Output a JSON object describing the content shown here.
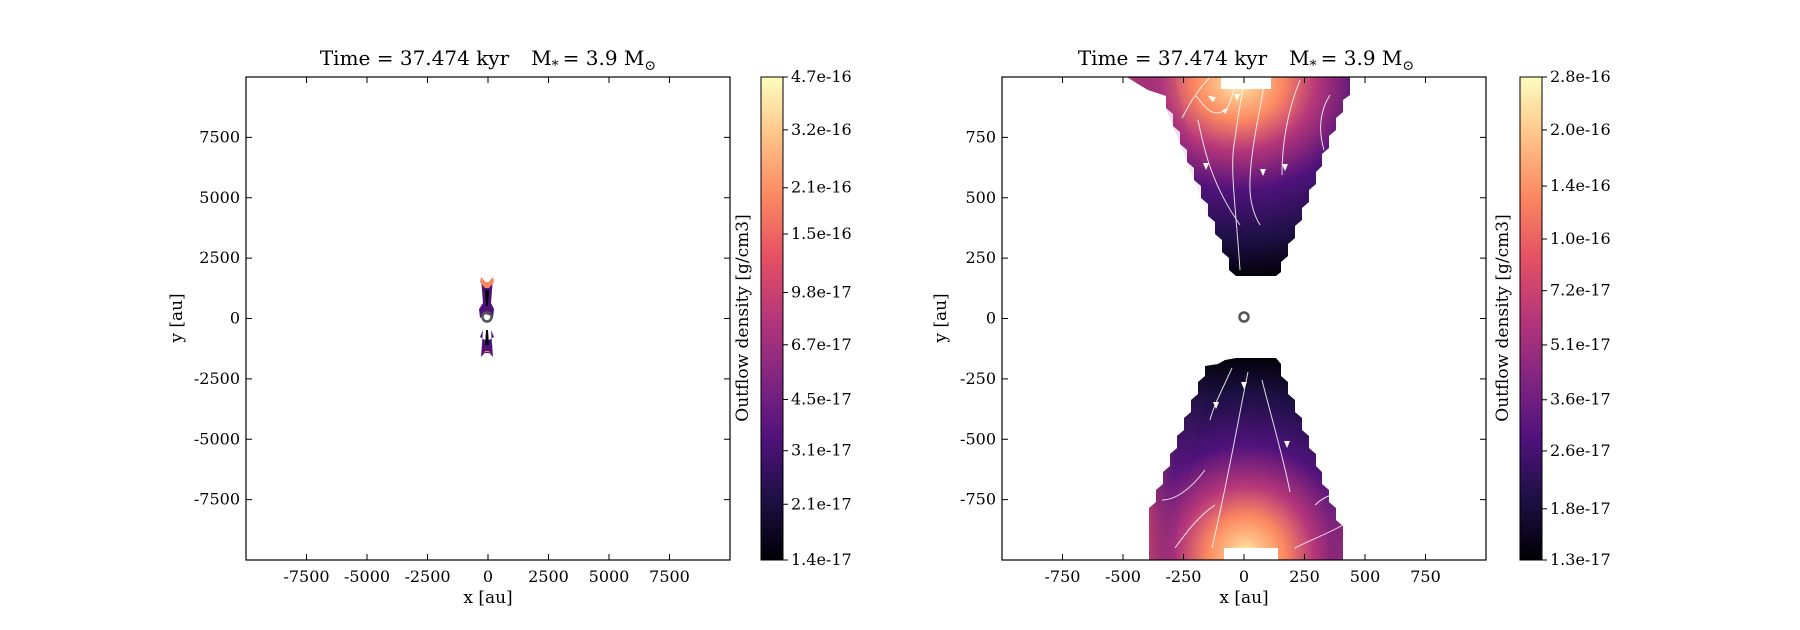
{
  "chart_data": [
    {
      "type": "heatmap",
      "title": "Time = 37.474 kyr    M$_*$ = 3.9 M$_\\odot$",
      "title_parts": {
        "time": "Time = 37.474 kyr",
        "mass_label": "M",
        "mass_sub": "*",
        "mass_value": "= 3.9 M",
        "mass_value_sub": "⊙"
      },
      "xlabel": "x [au]",
      "ylabel": "y [au]",
      "xlim": [
        -10000,
        10000
      ],
      "ylim": [
        -10000,
        10000
      ],
      "xticks": [
        -7500,
        -5000,
        -2500,
        0,
        2500,
        5000,
        7500
      ],
      "xtick_labels": [
        "-7500",
        "-5000",
        "-2500",
        "0",
        "2500",
        "5000",
        "7500"
      ],
      "yticks": [
        7500,
        5000,
        2500,
        0,
        -2500,
        -5000,
        -7500
      ],
      "ytick_labels": [
        "7500",
        "5000",
        "2500",
        "0",
        "-2500",
        "-5000",
        "-7500"
      ],
      "colorbar": {
        "label": "Outflow density [g/cm3]",
        "ticks": [
          "1.4e-17",
          "2.1e-17",
          "3.1e-17",
          "4.5e-17",
          "6.7e-17",
          "9.8e-17",
          "1.5e-16",
          "2.1e-16",
          "3.2e-16",
          "4.7e-16"
        ],
        "min": 1.4e-17,
        "max": 4.7e-16,
        "colormap": "magma"
      },
      "outflow_extent": {
        "x": [
          -350,
          350
        ],
        "y": [
          -1600,
          1600
        ]
      },
      "star_position": [
        0,
        0
      ]
    },
    {
      "type": "heatmap",
      "title": "Time = 37.474 kyr    M$_*$ = 3.9 M$_\\odot$",
      "title_parts": {
        "time": "Time = 37.474 kyr",
        "mass_label": "M",
        "mass_sub": "*",
        "mass_value": "= 3.9 M",
        "mass_value_sub": "⊙"
      },
      "xlabel": "x [au]",
      "ylabel": "y [au]",
      "xlim": [
        -1000,
        1000
      ],
      "ylim": [
        -1000,
        1000
      ],
      "xticks": [
        -750,
        -500,
        -250,
        0,
        250,
        500,
        750
      ],
      "xtick_labels": [
        "-750",
        "-500",
        "-250",
        "0",
        "250",
        "500",
        "750"
      ],
      "yticks": [
        750,
        500,
        250,
        0,
        -250,
        -500,
        -750
      ],
      "ytick_labels": [
        "750",
        "500",
        "250",
        "0",
        "-250",
        "-500",
        "-750"
      ],
      "colorbar": {
        "label": "Outflow density [g/cm3]",
        "ticks": [
          "1.3e-17",
          "1.8e-17",
          "2.6e-17",
          "3.6e-17",
          "5.1e-17",
          "7.2e-17",
          "1.0e-16",
          "1.4e-16",
          "2.0e-16",
          "2.8e-16"
        ],
        "min": 1.3e-17,
        "max": 2.8e-16,
        "colormap": "magma"
      },
      "outflow_extent": {
        "x": [
          -450,
          450
        ],
        "y_upper": [
          180,
          1000
        ],
        "y_lower": [
          -1000,
          -180
        ]
      },
      "star_position": [
        0,
        0
      ]
    }
  ],
  "colors": {
    "magma_stops": [
      "#000004",
      "#1c1044",
      "#4f127b",
      "#812581",
      "#b5367a",
      "#e55064",
      "#fb8761",
      "#fec287",
      "#fcfdbf"
    ],
    "streamline": "#ffffff",
    "axes": "#000000",
    "background": "#ffffff"
  }
}
